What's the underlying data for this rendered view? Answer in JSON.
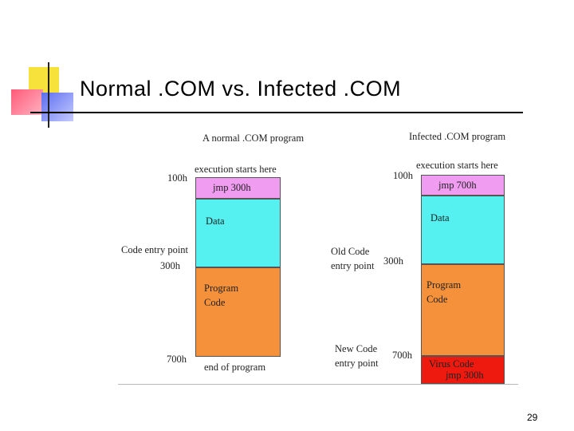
{
  "slide": {
    "title": "Normal .COM vs. Infected .COM",
    "page_number": "29"
  },
  "colors": {
    "jmp_block": "#f09cf0",
    "data_block": "#55f0f0",
    "code_block": "#f5913a",
    "virus_block": "#ee1a10"
  },
  "normal": {
    "heading": "A normal .COM program",
    "exec_label": "execution starts here",
    "addr_100": "100h",
    "jmp": "jmp  300h",
    "data": "Data",
    "entry_label": "Code entry point",
    "addr_300": "300h",
    "program_code": [
      "Program",
      "Code"
    ],
    "addr_700": "700h",
    "end_label": "end of program"
  },
  "infected": {
    "heading": "Infected .COM program",
    "exec_label": "execution starts here",
    "addr_100": "100h",
    "jmp": "jmp  700h",
    "data": "Data",
    "old_entry": [
      "Old Code",
      "entry point"
    ],
    "addr_300": "300h",
    "program_code": [
      "Program",
      "Code"
    ],
    "new_entry": [
      "New Code",
      "entry point"
    ],
    "addr_700": "700h",
    "virus_code": [
      "Virus Code",
      "jmp 300h"
    ]
  }
}
